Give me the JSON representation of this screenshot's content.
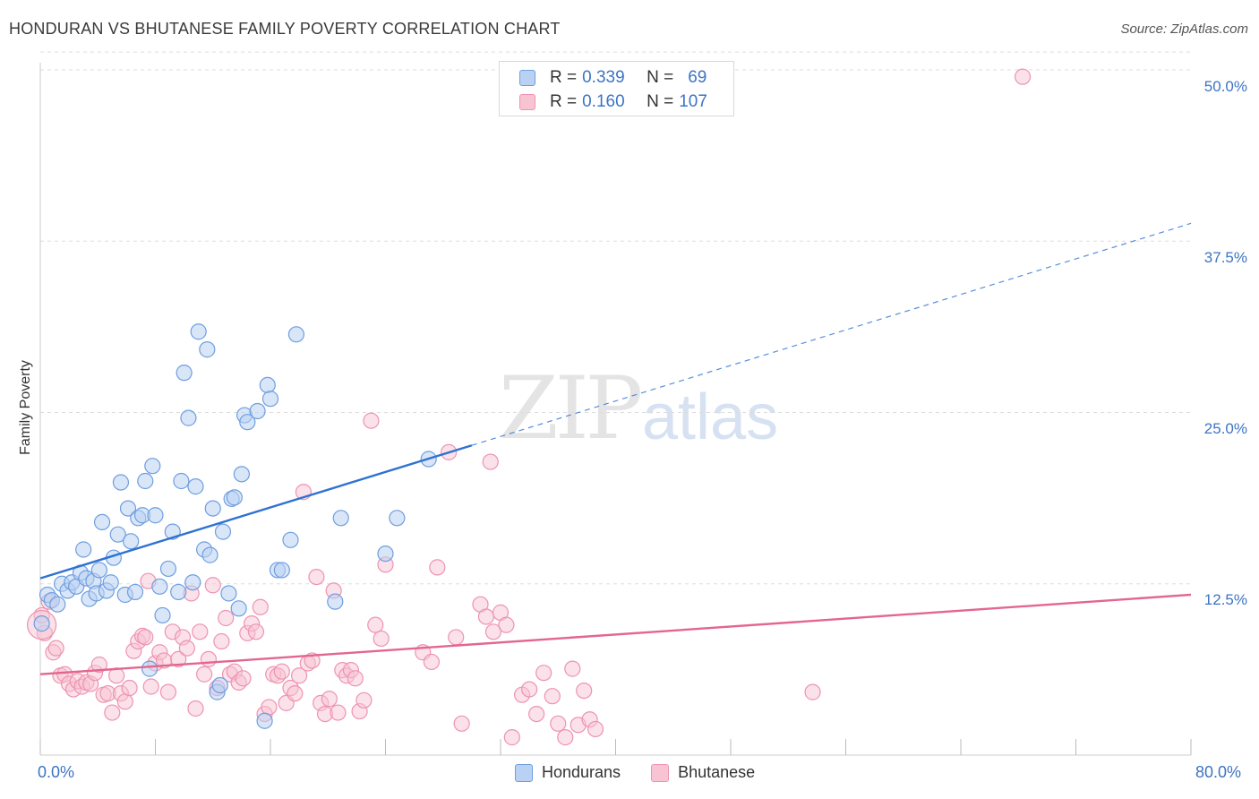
{
  "header": {
    "title": "HONDURAN VS BHUTANESE FAMILY POVERTY CORRELATION CHART",
    "source": "Source: ZipAtlas.com"
  },
  "watermark": {
    "zip": "ZIP",
    "atlas": "atlas"
  },
  "legend_top": {
    "rows": [
      {
        "r_label": "R = ",
        "r_value": "0.339",
        "n_label": "N = ",
        "n_value": "69"
      },
      {
        "r_label": "R = ",
        "r_value": "0.160",
        "n_label": "N = ",
        "n_value": "107"
      }
    ]
  },
  "colors": {
    "hondurans_fill": "#b9d2f3",
    "hondurans_stroke": "#6e9ee0",
    "hondurans_line": "#2e72d2",
    "bhutanese_fill": "#f8c4d4",
    "bhutanese_stroke": "#ee93b1",
    "bhutanese_line": "#e3668f",
    "grid": "#dddddd",
    "axis_text": "#3d74c4"
  },
  "chart_data": {
    "type": "scatter",
    "title": "HONDURAN VS BHUTANESE FAMILY POVERTY CORRELATION CHART",
    "xlabel": "",
    "ylabel": "Family Poverty",
    "xlim": [
      0,
      80
    ],
    "ylim": [
      0,
      51.5
    ],
    "x_tick_labels": [
      "0.0%",
      "80.0%"
    ],
    "y_ticks": [
      12.5,
      25.0,
      37.5,
      50.0
    ],
    "y_tick_labels": [
      "12.5%",
      "25.0%",
      "37.5%",
      "50.0%"
    ],
    "legend": "bottom-center",
    "grid": true,
    "series": [
      {
        "name": "Hondurans",
        "r": 0.339,
        "n": 69,
        "trend": {
          "x0": 0,
          "y0": 12.9,
          "x1": 30,
          "y1": 22.6,
          "dash_to_x": 80,
          "dash_to_y": 38.8
        },
        "points": [
          [
            0.5,
            11.7
          ],
          [
            0.8,
            11.3
          ],
          [
            1.2,
            11.0
          ],
          [
            1.5,
            12.5
          ],
          [
            1.9,
            12.0
          ],
          [
            2.2,
            12.6
          ],
          [
            2.5,
            12.3
          ],
          [
            2.8,
            13.3
          ],
          [
            3.0,
            15.0
          ],
          [
            3.2,
            12.9
          ],
          [
            3.4,
            11.4
          ],
          [
            3.7,
            12.7
          ],
          [
            3.9,
            11.8
          ],
          [
            4.1,
            13.5
          ],
          [
            4.3,
            17.0
          ],
          [
            4.6,
            12.0
          ],
          [
            4.9,
            12.6
          ],
          [
            5.1,
            14.4
          ],
          [
            5.4,
            16.1
          ],
          [
            5.6,
            19.9
          ],
          [
            5.9,
            11.7
          ],
          [
            6.1,
            18.0
          ],
          [
            6.3,
            15.6
          ],
          [
            6.6,
            11.9
          ],
          [
            6.8,
            17.3
          ],
          [
            7.1,
            17.5
          ],
          [
            7.3,
            20.0
          ],
          [
            7.6,
            6.3
          ],
          [
            7.8,
            21.1
          ],
          [
            8.0,
            17.5
          ],
          [
            8.3,
            12.3
          ],
          [
            8.5,
            10.2
          ],
          [
            8.9,
            13.6
          ],
          [
            9.2,
            16.3
          ],
          [
            9.6,
            11.9
          ],
          [
            9.8,
            20.0
          ],
          [
            10.0,
            27.9
          ],
          [
            10.3,
            24.6
          ],
          [
            10.6,
            12.6
          ],
          [
            10.8,
            19.6
          ],
          [
            11.0,
            30.9
          ],
          [
            11.4,
            15.0
          ],
          [
            11.6,
            29.6
          ],
          [
            11.8,
            14.6
          ],
          [
            12.0,
            18.0
          ],
          [
            12.3,
            4.6
          ],
          [
            12.5,
            5.1
          ],
          [
            12.7,
            16.3
          ],
          [
            13.1,
            11.8
          ],
          [
            13.3,
            18.7
          ],
          [
            13.5,
            18.8
          ],
          [
            13.8,
            10.7
          ],
          [
            14.0,
            20.5
          ],
          [
            14.2,
            24.8
          ],
          [
            14.4,
            24.3
          ],
          [
            15.1,
            25.1
          ],
          [
            15.6,
            2.5
          ],
          [
            15.8,
            27.0
          ],
          [
            16.0,
            26.0
          ],
          [
            16.5,
            13.5
          ],
          [
            16.8,
            13.5
          ],
          [
            17.4,
            15.7
          ],
          [
            17.8,
            30.7
          ],
          [
            20.5,
            11.2
          ],
          [
            20.9,
            17.3
          ],
          [
            24.0,
            14.7
          ],
          [
            24.8,
            17.3
          ],
          [
            27.0,
            21.6
          ],
          [
            0.1,
            9.6
          ]
        ]
      },
      {
        "name": "Bhutanese",
        "r": 0.16,
        "n": 107,
        "trend": {
          "x0": 0,
          "y0": 5.9,
          "x1": 80,
          "y1": 11.7
        },
        "points": [
          [
            0.1,
            10.2
          ],
          [
            0.3,
            8.9
          ],
          [
            0.6,
            11.2
          ],
          [
            0.9,
            7.5
          ],
          [
            1.1,
            7.8
          ],
          [
            1.4,
            5.8
          ],
          [
            1.7,
            5.9
          ],
          [
            2.0,
            5.2
          ],
          [
            2.3,
            4.8
          ],
          [
            2.6,
            5.4
          ],
          [
            2.9,
            5.0
          ],
          [
            3.2,
            5.3
          ],
          [
            3.5,
            5.2
          ],
          [
            3.8,
            6.0
          ],
          [
            4.1,
            6.6
          ],
          [
            4.4,
            4.4
          ],
          [
            4.7,
            4.5
          ],
          [
            5.0,
            3.1
          ],
          [
            5.3,
            5.8
          ],
          [
            5.6,
            4.5
          ],
          [
            5.9,
            3.9
          ],
          [
            6.2,
            4.9
          ],
          [
            6.5,
            7.6
          ],
          [
            6.8,
            8.3
          ],
          [
            7.1,
            8.7
          ],
          [
            7.3,
            8.6
          ],
          [
            7.5,
            12.7
          ],
          [
            7.7,
            5.0
          ],
          [
            8.0,
            6.7
          ],
          [
            8.3,
            7.5
          ],
          [
            8.6,
            6.9
          ],
          [
            8.9,
            4.6
          ],
          [
            9.2,
            9.0
          ],
          [
            9.6,
            7.0
          ],
          [
            9.9,
            8.6
          ],
          [
            10.2,
            7.8
          ],
          [
            10.5,
            11.8
          ],
          [
            10.8,
            3.4
          ],
          [
            11.1,
            9.0
          ],
          [
            11.4,
            5.9
          ],
          [
            11.7,
            7.0
          ],
          [
            12.0,
            12.4
          ],
          [
            12.3,
            4.9
          ],
          [
            12.6,
            8.3
          ],
          [
            12.9,
            10.0
          ],
          [
            13.2,
            5.9
          ],
          [
            13.5,
            6.1
          ],
          [
            13.8,
            5.3
          ],
          [
            14.1,
            5.6
          ],
          [
            14.4,
            8.9
          ],
          [
            14.7,
            9.6
          ],
          [
            15.0,
            9.0
          ],
          [
            15.3,
            10.8
          ],
          [
            15.6,
            3.0
          ],
          [
            15.9,
            3.5
          ],
          [
            16.2,
            5.9
          ],
          [
            16.5,
            5.8
          ],
          [
            16.8,
            6.1
          ],
          [
            17.1,
            3.8
          ],
          [
            17.4,
            4.9
          ],
          [
            17.7,
            4.5
          ],
          [
            18.0,
            5.8
          ],
          [
            18.3,
            19.2
          ],
          [
            18.6,
            6.7
          ],
          [
            18.9,
            6.9
          ],
          [
            19.2,
            13.0
          ],
          [
            19.5,
            3.8
          ],
          [
            19.8,
            3.0
          ],
          [
            20.1,
            4.1
          ],
          [
            20.4,
            12.0
          ],
          [
            20.7,
            3.1
          ],
          [
            21.0,
            6.2
          ],
          [
            21.3,
            5.8
          ],
          [
            21.6,
            6.2
          ],
          [
            21.9,
            5.6
          ],
          [
            22.2,
            3.2
          ],
          [
            22.5,
            4.0
          ],
          [
            23.0,
            24.4
          ],
          [
            23.3,
            9.5
          ],
          [
            23.7,
            8.5
          ],
          [
            24.0,
            13.9
          ],
          [
            26.6,
            7.5
          ],
          [
            27.2,
            6.8
          ],
          [
            27.6,
            13.7
          ],
          [
            28.4,
            22.1
          ],
          [
            28.9,
            8.6
          ],
          [
            29.3,
            2.3
          ],
          [
            30.6,
            11.0
          ],
          [
            31.0,
            10.1
          ],
          [
            31.3,
            21.4
          ],
          [
            31.5,
            9.0
          ],
          [
            32.0,
            10.4
          ],
          [
            32.4,
            9.5
          ],
          [
            32.8,
            1.3
          ],
          [
            33.5,
            4.4
          ],
          [
            34.0,
            4.8
          ],
          [
            34.5,
            3.0
          ],
          [
            35.0,
            6.0
          ],
          [
            35.6,
            4.3
          ],
          [
            36.0,
            2.3
          ],
          [
            36.5,
            1.3
          ],
          [
            37.0,
            6.3
          ],
          [
            37.4,
            2.2
          ],
          [
            37.8,
            4.7
          ],
          [
            38.2,
            2.6
          ],
          [
            38.6,
            1.9
          ],
          [
            53.7,
            4.6
          ]
        ],
        "outlier": [
          68.3,
          49.5
        ]
      }
    ]
  },
  "legend_bottom": {
    "items": [
      "Hondurans",
      "Bhutanese"
    ]
  }
}
